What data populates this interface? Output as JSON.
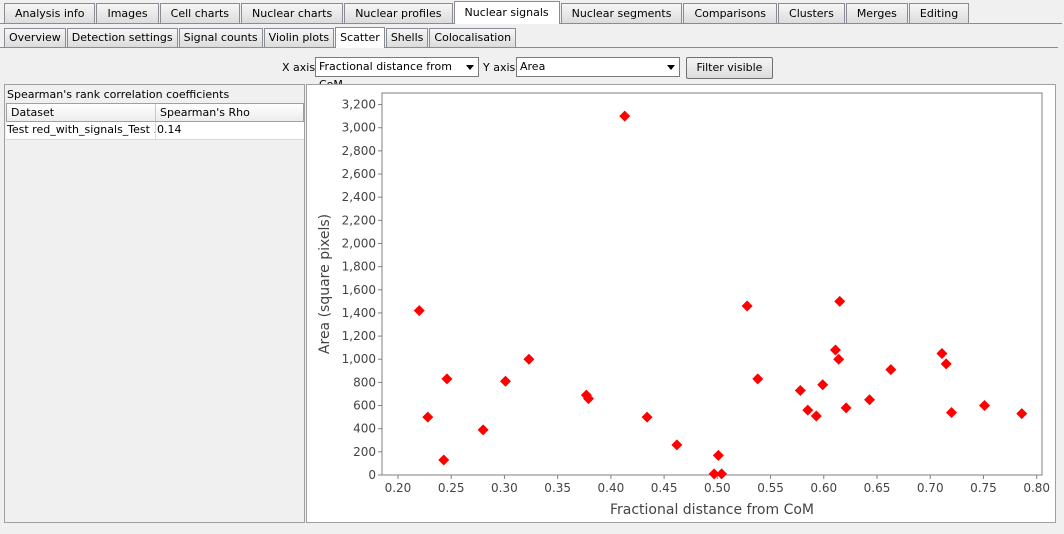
{
  "main_tabs": [
    {
      "label": "Analysis info",
      "active": false
    },
    {
      "label": "Images",
      "active": false
    },
    {
      "label": "Cell charts",
      "active": false
    },
    {
      "label": "Nuclear charts",
      "active": false
    },
    {
      "label": "Nuclear profiles",
      "active": false
    },
    {
      "label": "Nuclear signals",
      "active": true
    },
    {
      "label": "Nuclear segments",
      "active": false
    },
    {
      "label": "Comparisons",
      "active": false
    },
    {
      "label": "Clusters",
      "active": false
    },
    {
      "label": "Merges",
      "active": false
    },
    {
      "label": "Editing",
      "active": false
    }
  ],
  "sub_tabs": [
    {
      "label": "Overview",
      "active": false
    },
    {
      "label": "Detection settings",
      "active": false
    },
    {
      "label": "Signal counts",
      "active": false
    },
    {
      "label": "Violin plots",
      "active": false
    },
    {
      "label": "Scatter",
      "active": true
    },
    {
      "label": "Shells",
      "active": false
    },
    {
      "label": "Colocalisation",
      "active": false
    }
  ],
  "controls": {
    "x_axis_label": "X axis",
    "x_axis_value": "Fractional distance from CoM",
    "y_axis_label": "Y axis",
    "y_axis_value": "Area",
    "filter_button": "Filter visible"
  },
  "left_panel": {
    "title": "Spearman's rank correlation coefficients",
    "columns": [
      "Dataset",
      "Spearman's Rho"
    ],
    "rows": [
      [
        "Test red_with_signals_Test ...",
        "0.14"
      ]
    ]
  },
  "chart_data": {
    "type": "scatter",
    "xlabel": "Fractional distance from CoM",
    "ylabel": "Area (square pixels)",
    "xlim": [
      0.185,
      0.805
    ],
    "ylim": [
      0,
      3300
    ],
    "x_ticks": [
      "0.20",
      "0.25",
      "0.30",
      "0.35",
      "0.40",
      "0.45",
      "0.50",
      "0.55",
      "0.60",
      "0.65",
      "0.70",
      "0.75",
      "0.80"
    ],
    "y_ticks": [
      "0",
      "200",
      "400",
      "600",
      "800",
      "1,000",
      "1,200",
      "1,400",
      "1,600",
      "1,800",
      "2,000",
      "2,200",
      "2,400",
      "2,600",
      "2,800",
      "3,000",
      "3,200"
    ],
    "marker_color": "#ff0000",
    "grid": false,
    "points": [
      {
        "x": 0.22,
        "y": 1420
      },
      {
        "x": 0.228,
        "y": 500
      },
      {
        "x": 0.243,
        "y": 130
      },
      {
        "x": 0.246,
        "y": 830
      },
      {
        "x": 0.28,
        "y": 390
      },
      {
        "x": 0.301,
        "y": 810
      },
      {
        "x": 0.323,
        "y": 1000
      },
      {
        "x": 0.377,
        "y": 690
      },
      {
        "x": 0.379,
        "y": 660
      },
      {
        "x": 0.413,
        "y": 3100
      },
      {
        "x": 0.434,
        "y": 500
      },
      {
        "x": 0.462,
        "y": 260
      },
      {
        "x": 0.497,
        "y": 10
      },
      {
        "x": 0.501,
        "y": 170
      },
      {
        "x": 0.504,
        "y": 10
      },
      {
        "x": 0.528,
        "y": 1460
      },
      {
        "x": 0.538,
        "y": 830
      },
      {
        "x": 0.578,
        "y": 730
      },
      {
        "x": 0.585,
        "y": 560
      },
      {
        "x": 0.593,
        "y": 510
      },
      {
        "x": 0.599,
        "y": 780
      },
      {
        "x": 0.611,
        "y": 1080
      },
      {
        "x": 0.614,
        "y": 1000
      },
      {
        "x": 0.615,
        "y": 1500
      },
      {
        "x": 0.621,
        "y": 580
      },
      {
        "x": 0.643,
        "y": 650
      },
      {
        "x": 0.663,
        "y": 910
      },
      {
        "x": 0.711,
        "y": 1050
      },
      {
        "x": 0.715,
        "y": 960
      },
      {
        "x": 0.72,
        "y": 540
      },
      {
        "x": 0.751,
        "y": 600
      },
      {
        "x": 0.786,
        "y": 530
      }
    ]
  }
}
